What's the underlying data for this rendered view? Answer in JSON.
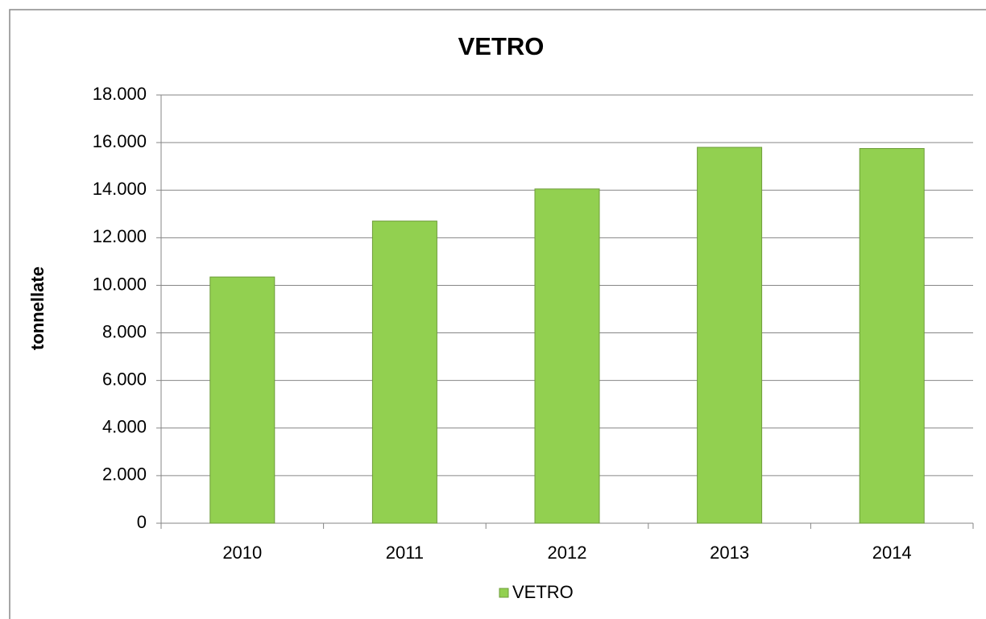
{
  "chart_data": {
    "type": "bar",
    "title": "VETRO",
    "y_label": "tonnellate",
    "categories": [
      "2010",
      "2011",
      "2012",
      "2013",
      "2014"
    ],
    "series": [
      {
        "name": "VETRO",
        "color": "#92d050",
        "values": [
          10350,
          12700,
          14050,
          15800,
          15750
        ]
      }
    ],
    "ylim": [
      0,
      18000
    ],
    "yticks": [
      0,
      {
        "value": 2000,
        "label": "2.000"
      },
      {
        "value": 4000,
        "label": "4.000"
      },
      {
        "value": 6000,
        "label": "6.000"
      },
      {
        "value": 8000,
        "label": "8.000"
      },
      {
        "value": 10000,
        "label": "10.000"
      },
      {
        "value": 12000,
        "label": "12.000"
      },
      {
        "value": 14000,
        "label": "14.000"
      },
      {
        "value": 16000,
        "label": "16.000"
      },
      {
        "value": 18000,
        "label": "18.000"
      }
    ],
    "grid": true,
    "legend": "bottom"
  }
}
